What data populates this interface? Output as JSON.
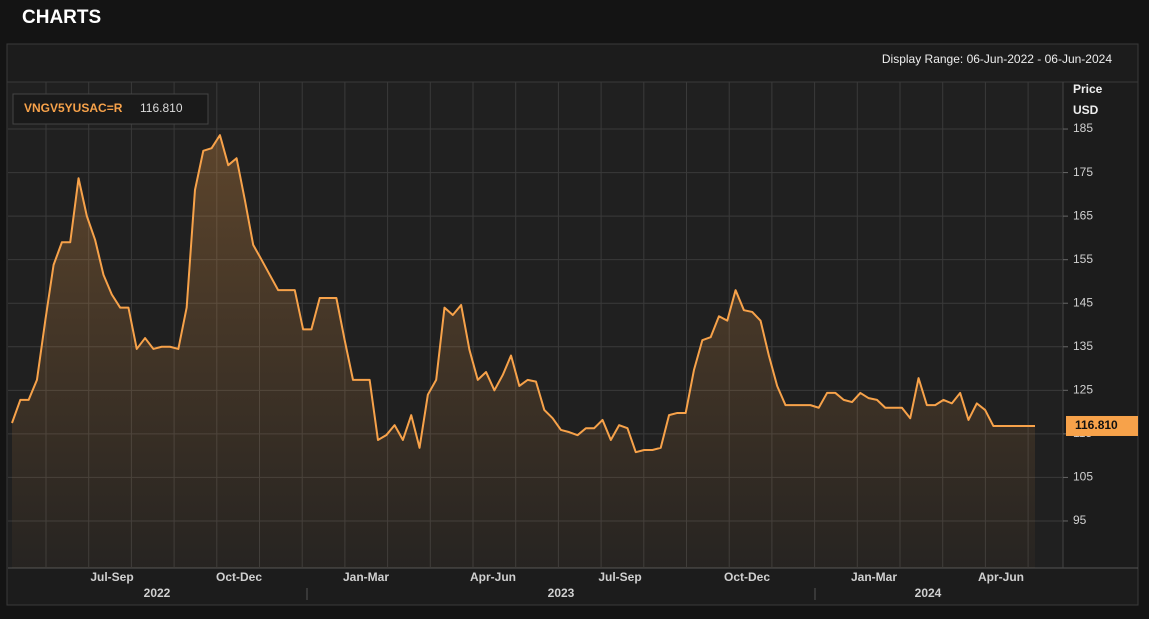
{
  "header": {
    "title": "CHARTS"
  },
  "chart_data": {
    "type": "line",
    "display_range": "Display Range: 06-Jun-2022 - 06-Jun-2024",
    "y_axis_label": "Price",
    "y_axis_unit": "USD",
    "series": [
      {
        "name": "VNGV5YUSAC=R",
        "color": "#f7a24a",
        "values": [
          117.5,
          122.8,
          122.8,
          127.4,
          141,
          153.8,
          159,
          159,
          173.7,
          165,
          159.5,
          151.5,
          147,
          144,
          144,
          134.5,
          137,
          134.5,
          135,
          135,
          134.5,
          144,
          171,
          180,
          180.6,
          183.6,
          176.7,
          178.3,
          168.7,
          158.4,
          155,
          151.5,
          148,
          148,
          148,
          139,
          139,
          146.2,
          146.2,
          146.2,
          136.5,
          127.4,
          127.4,
          127.4,
          113.6,
          114.7,
          117,
          113.6,
          119.3,
          111.8,
          124,
          127.4,
          144,
          142.3,
          144.6,
          134.3,
          127.4,
          129.2,
          125,
          128.5,
          133,
          126,
          127.4,
          127,
          120.5,
          118.6,
          115.9,
          115.4,
          114.7,
          116.3,
          116.3,
          118.2,
          113.6,
          117,
          116.3,
          110.8,
          111.3,
          111.3,
          111.8,
          119.3,
          119.8,
          119.8,
          129.7,
          136.5,
          137.2,
          142,
          141,
          148,
          143.4,
          143,
          141,
          133,
          126,
          121.6,
          121.6,
          121.6,
          121.6,
          121,
          124.4,
          124.4,
          122.8,
          122.3,
          124.4,
          123.2,
          122.8,
          121,
          121,
          121,
          118.6,
          127.8,
          121.6,
          121.6,
          122.8,
          122,
          124.4,
          118.2,
          122,
          120.5,
          116.8,
          116.8,
          116.81,
          116.81,
          116.81,
          116.81
        ]
      }
    ],
    "last_value": 116.81,
    "last_value_label": "116.810",
    "ylim": [
      84.2,
      195.8
    ],
    "yticks": [
      95,
      105,
      115,
      125,
      135,
      145,
      155,
      165,
      175,
      185
    ],
    "grid": true,
    "x_labels": [
      "Jul-Sep",
      "Oct-Dec",
      "Jan-Mar",
      "Apr-Jun",
      "Jul-Sep",
      "Oct-Dec",
      "Jan-Mar",
      "Apr-Jun"
    ],
    "x_group_labels": [
      "2022",
      "2023",
      "2024"
    ]
  }
}
